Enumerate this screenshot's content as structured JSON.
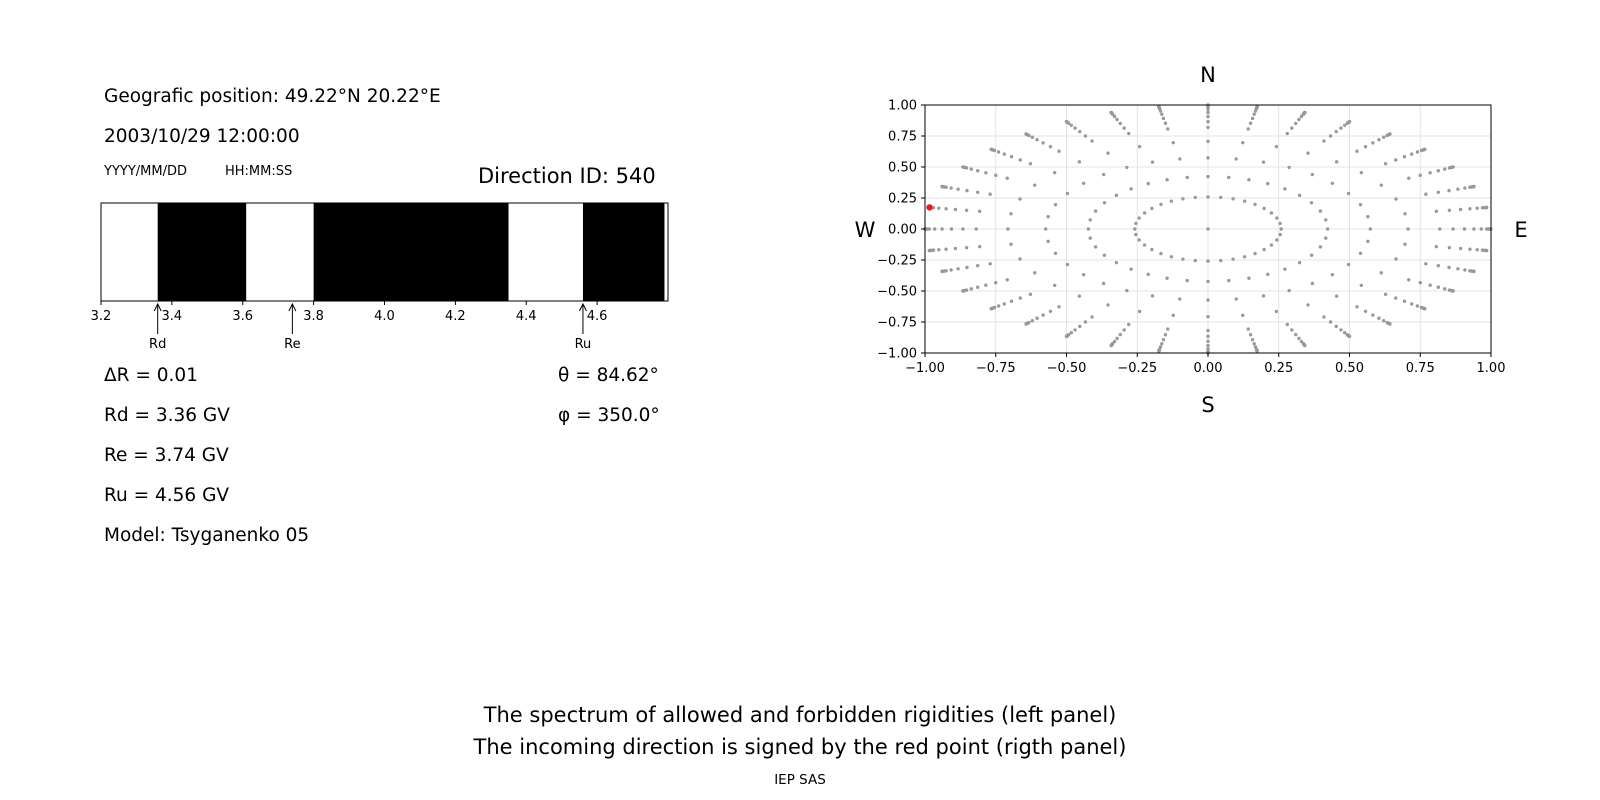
{
  "info": {
    "position": "Geografic position: 49.22°N 20.22°E",
    "datetime": "2003/10/29 12:00:00",
    "date_format": "YYYY/MM/DD",
    "time_format": "HH:MM:SS",
    "direction_id": "Direction ID: 540",
    "delta_r": "ΔR = 0.01",
    "rd": "Rd = 3.36 GV",
    "re": "Re = 3.74 GV",
    "ru": "Ru = 4.56 GV",
    "model": "Model: Tsyganenko 05",
    "theta": "θ = 84.62°",
    "phi": "φ = 350.0°"
  },
  "footer": {
    "line1": "The spectrum of allowed and forbidden rigidities (left panel)",
    "line2": "The incoming direction is signed by the red point (rigth panel)",
    "credit": "IEP SAS"
  },
  "chart_data": [
    {
      "type": "bar",
      "xlim": [
        3.2,
        4.8
      ],
      "xticks": [
        "3.2",
        "3.4",
        "3.6",
        "3.8",
        "4.0",
        "4.2",
        "4.4",
        "4.6"
      ],
      "xtick_values": [
        3.2,
        3.4,
        3.6,
        3.8,
        4.0,
        4.2,
        4.4,
        4.6
      ],
      "segments": [
        {
          "from": 3.19,
          "to": 3.36,
          "state": "allowed"
        },
        {
          "from": 3.36,
          "to": 3.61,
          "state": "forbidden"
        },
        {
          "from": 3.61,
          "to": 3.8,
          "state": "allowed"
        },
        {
          "from": 3.8,
          "to": 4.35,
          "state": "forbidden"
        },
        {
          "from": 4.35,
          "to": 4.56,
          "state": "allowed"
        },
        {
          "from": 4.56,
          "to": 4.79,
          "state": "forbidden"
        }
      ],
      "markers": [
        {
          "label": "Rd",
          "value": 3.36
        },
        {
          "label": "Re",
          "value": 3.74
        },
        {
          "label": "Ru",
          "value": 4.56
        }
      ],
      "colors": {
        "allowed": "#ffffff",
        "forbidden": "#000000"
      }
    },
    {
      "type": "scatter",
      "xlim": [
        -1.0,
        1.0
      ],
      "ylim": [
        -1.0,
        1.0
      ],
      "xticks": [
        "−1.00",
        "−0.75",
        "−0.50",
        "−0.25",
        "0.00",
        "0.25",
        "0.50",
        "0.75",
        "1.00"
      ],
      "yticks": [
        "1.00",
        "0.75",
        "0.50",
        "0.25",
        "0.00",
        "−0.25",
        "−0.50",
        "−0.75",
        "−1.00"
      ],
      "tick_values": [
        -1.0,
        -0.75,
        -0.5,
        -0.25,
        0.0,
        0.25,
        0.5,
        0.75,
        1.0
      ],
      "grid": true,
      "compass": {
        "north": "N",
        "south": "S",
        "west": "W",
        "east": "E"
      },
      "grid_points": {
        "zenith_angles_deg": [
          0,
          15,
          25,
          35,
          45,
          55,
          60,
          65,
          70,
          75,
          80,
          82,
          84,
          86,
          88,
          90
        ],
        "azimuth_step_deg": 10
      },
      "highlight": {
        "theta_deg": 84.62,
        "phi_deg": 350.0,
        "x": -0.984,
        "y": 0.174
      },
      "colors": {
        "grid_point": "#999999",
        "highlight": "#e31a1c"
      }
    }
  ]
}
